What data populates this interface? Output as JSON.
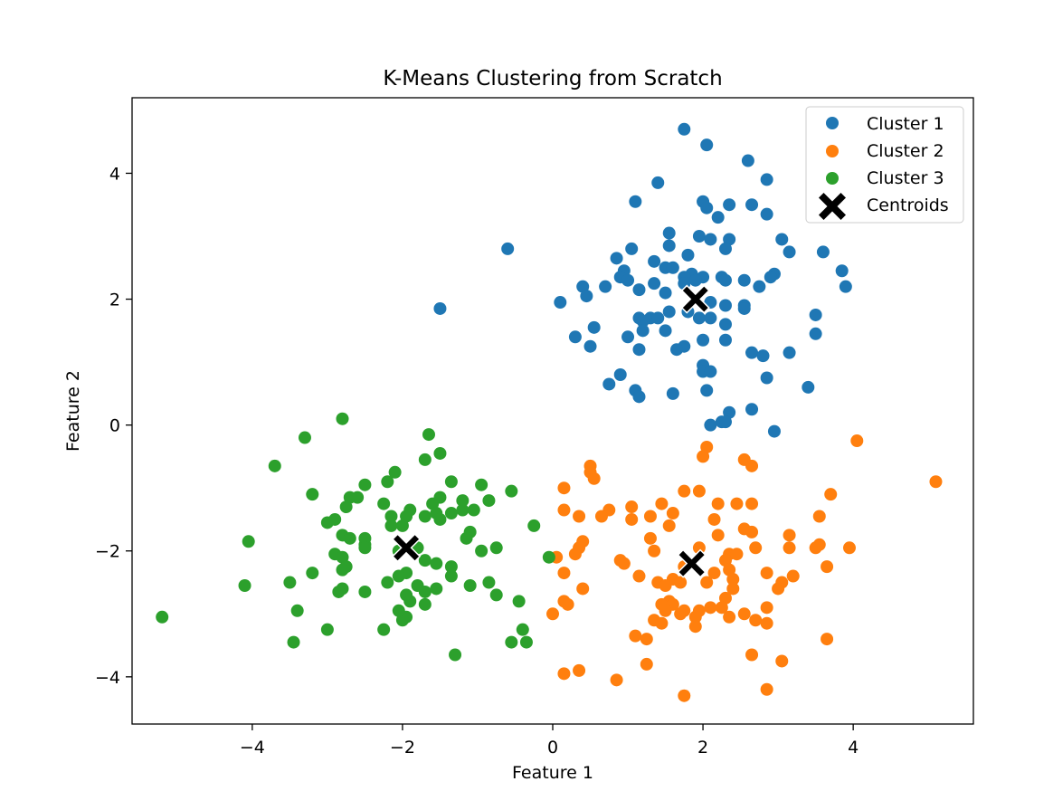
{
  "chart_data": {
    "type": "scatter",
    "title": "K-Means Clustering from Scratch",
    "xlabel": "Feature 1",
    "ylabel": "Feature 2",
    "xlim": [
      -5.6,
      5.6
    ],
    "ylim": [
      -4.75,
      5.2
    ],
    "xticks": [
      -4,
      -2,
      0,
      2,
      4
    ],
    "xtick_labels": [
      "−4",
      "−2",
      "0",
      "2",
      "4"
    ],
    "yticks": [
      -4,
      -2,
      0,
      2,
      4
    ],
    "ytick_labels": [
      "−4",
      "−2",
      "0",
      "2",
      "4"
    ],
    "grid": false,
    "legend_position": "top-right",
    "series": [
      {
        "name": "Cluster 1",
        "color": "#1f77b4",
        "marker": "circle",
        "points": [
          [
            1.75,
            4.7
          ],
          [
            2.05,
            4.45
          ],
          [
            2.6,
            4.2
          ],
          [
            1.4,
            3.85
          ],
          [
            2.85,
            3.9
          ],
          [
            1.1,
            3.55
          ],
          [
            2.0,
            3.55
          ],
          [
            2.05,
            3.45
          ],
          [
            2.35,
            3.5
          ],
          [
            2.65,
            3.5
          ],
          [
            2.85,
            3.35
          ],
          [
            2.2,
            3.3
          ],
          [
            1.55,
            3.05
          ],
          [
            1.95,
            3.0
          ],
          [
            2.1,
            2.95
          ],
          [
            2.35,
            2.95
          ],
          [
            3.05,
            2.95
          ],
          [
            1.55,
            2.85
          ],
          [
            2.3,
            2.8
          ],
          [
            1.05,
            2.8
          ],
          [
            3.15,
            2.75
          ],
          [
            3.6,
            2.75
          ],
          [
            1.8,
            2.7
          ],
          [
            0.85,
            2.65
          ],
          [
            1.35,
            2.6
          ],
          [
            1.5,
            2.5
          ],
          [
            1.6,
            2.5
          ],
          [
            0.95,
            2.45
          ],
          [
            3.85,
            2.45
          ],
          [
            1.85,
            2.4
          ],
          [
            2.0,
            2.35
          ],
          [
            2.95,
            2.4
          ],
          [
            0.9,
            2.35
          ],
          [
            1.75,
            2.35
          ],
          [
            2.25,
            2.35
          ],
          [
            2.9,
            2.35
          ],
          [
            1.0,
            2.3
          ],
          [
            1.9,
            2.3
          ],
          [
            2.3,
            2.3
          ],
          [
            2.55,
            2.3
          ],
          [
            1.35,
            2.25
          ],
          [
            1.75,
            2.25
          ],
          [
            0.4,
            2.2
          ],
          [
            0.7,
            2.2
          ],
          [
            2.75,
            2.2
          ],
          [
            3.9,
            2.2
          ],
          [
            1.15,
            2.15
          ],
          [
            1.5,
            2.1
          ],
          [
            0.45,
            2.05
          ],
          [
            0.1,
            1.95
          ],
          [
            2.1,
            1.95
          ],
          [
            2.3,
            1.9
          ],
          [
            2.55,
            1.9
          ],
          [
            1.55,
            1.8
          ],
          [
            1.8,
            1.8
          ],
          [
            2.55,
            1.85
          ],
          [
            3.5,
            1.75
          ],
          [
            1.15,
            1.7
          ],
          [
            1.3,
            1.7
          ],
          [
            1.4,
            1.7
          ],
          [
            1.95,
            1.7
          ],
          [
            2.1,
            1.7
          ],
          [
            1.2,
            1.65
          ],
          [
            2.3,
            1.6
          ],
          [
            0.55,
            1.55
          ],
          [
            1.2,
            1.5
          ],
          [
            1.5,
            1.5
          ],
          [
            3.5,
            1.45
          ],
          [
            1.0,
            1.4
          ],
          [
            0.3,
            1.4
          ],
          [
            2.0,
            1.35
          ],
          [
            2.3,
            1.35
          ],
          [
            0.5,
            1.25
          ],
          [
            1.75,
            1.25
          ],
          [
            1.65,
            1.2
          ],
          [
            1.15,
            1.2
          ],
          [
            3.15,
            1.15
          ],
          [
            2.65,
            1.15
          ],
          [
            2.8,
            1.1
          ],
          [
            2.0,
            0.95
          ],
          [
            2.0,
            0.85
          ],
          [
            2.1,
            0.85
          ],
          [
            0.9,
            0.8
          ],
          [
            2.85,
            0.75
          ],
          [
            0.75,
            0.65
          ],
          [
            3.4,
            0.6
          ],
          [
            1.1,
            0.55
          ],
          [
            2.05,
            0.55
          ],
          [
            1.6,
            0.5
          ],
          [
            1.15,
            0.45
          ],
          [
            2.65,
            0.25
          ],
          [
            2.35,
            0.2
          ],
          [
            2.25,
            0.05
          ],
          [
            2.1,
            0.0
          ],
          [
            2.3,
            0.05
          ],
          [
            2.95,
            -0.1
          ],
          [
            -0.6,
            2.8
          ],
          [
            -1.5,
            1.85
          ]
        ]
      },
      {
        "name": "Cluster 2",
        "color": "#ff7f0e",
        "marker": "circle",
        "points": [
          [
            4.05,
            -0.25
          ],
          [
            2.05,
            -0.35
          ],
          [
            2.0,
            -0.5
          ],
          [
            2.55,
            -0.55
          ],
          [
            2.65,
            -0.65
          ],
          [
            0.5,
            -0.65
          ],
          [
            0.5,
            -0.75
          ],
          [
            0.55,
            -0.85
          ],
          [
            5.1,
            -0.9
          ],
          [
            0.15,
            -1.0
          ],
          [
            1.75,
            -1.05
          ],
          [
            1.95,
            -1.05
          ],
          [
            3.7,
            -1.1
          ],
          [
            2.2,
            -1.25
          ],
          [
            2.45,
            -1.25
          ],
          [
            2.65,
            -1.25
          ],
          [
            1.45,
            -1.25
          ],
          [
            1.05,
            -1.3
          ],
          [
            1.6,
            -1.4
          ],
          [
            0.75,
            -1.35
          ],
          [
            0.15,
            -1.35
          ],
          [
            1.3,
            -1.45
          ],
          [
            3.55,
            -1.45
          ],
          [
            0.35,
            -1.45
          ],
          [
            0.65,
            -1.45
          ],
          [
            1.05,
            -1.5
          ],
          [
            2.15,
            -1.5
          ],
          [
            1.55,
            -1.6
          ],
          [
            2.55,
            -1.65
          ],
          [
            2.65,
            -1.7
          ],
          [
            2.2,
            -1.75
          ],
          [
            3.15,
            -1.75
          ],
          [
            1.3,
            -1.8
          ],
          [
            0.4,
            -1.85
          ],
          [
            0.35,
            -1.95
          ],
          [
            1.95,
            -1.95
          ],
          [
            3.5,
            -1.95
          ],
          [
            3.55,
            -1.9
          ],
          [
            3.95,
            -1.95
          ],
          [
            3.15,
            -1.95
          ],
          [
            2.7,
            -1.95
          ],
          [
            1.35,
            -2.0
          ],
          [
            0.3,
            -2.05
          ],
          [
            2.35,
            -2.05
          ],
          [
            2.45,
            -2.05
          ],
          [
            0.05,
            -2.1
          ],
          [
            2.3,
            -2.15
          ],
          [
            0.9,
            -2.15
          ],
          [
            0.95,
            -2.2
          ],
          [
            3.65,
            -2.25
          ],
          [
            1.75,
            -2.25
          ],
          [
            2.35,
            -2.3
          ],
          [
            2.15,
            -2.35
          ],
          [
            0.15,
            -2.35
          ],
          [
            2.85,
            -2.35
          ],
          [
            1.15,
            -2.4
          ],
          [
            3.2,
            -2.4
          ],
          [
            2.4,
            -2.45
          ],
          [
            1.6,
            -2.45
          ],
          [
            1.4,
            -2.5
          ],
          [
            1.7,
            -2.5
          ],
          [
            3.05,
            -2.5
          ],
          [
            2.05,
            -2.5
          ],
          [
            3.0,
            -2.6
          ],
          [
            1.5,
            -2.55
          ],
          [
            0.4,
            -2.6
          ],
          [
            2.4,
            -2.6
          ],
          [
            2.3,
            -2.75
          ],
          [
            1.55,
            -2.8
          ],
          [
            1.45,
            -2.85
          ],
          [
            0.15,
            -2.8
          ],
          [
            0.2,
            -2.85
          ],
          [
            1.6,
            -2.85
          ],
          [
            2.1,
            -2.9
          ],
          [
            2.85,
            -2.9
          ],
          [
            1.75,
            -2.95
          ],
          [
            1.5,
            -2.95
          ],
          [
            1.95,
            -2.95
          ],
          [
            2.25,
            -2.9
          ],
          [
            1.7,
            -3.0
          ],
          [
            2.55,
            -3.0
          ],
          [
            -0.0,
            -3.0
          ],
          [
            1.9,
            -3.05
          ],
          [
            2.35,
            -3.05
          ],
          [
            1.35,
            -3.1
          ],
          [
            2.7,
            -3.1
          ],
          [
            1.45,
            -3.15
          ],
          [
            2.85,
            -3.15
          ],
          [
            1.9,
            -3.2
          ],
          [
            1.1,
            -3.35
          ],
          [
            1.25,
            -3.4
          ],
          [
            3.65,
            -3.4
          ],
          [
            2.65,
            -3.65
          ],
          [
            3.05,
            -3.75
          ],
          [
            1.25,
            -3.8
          ],
          [
            0.35,
            -3.9
          ],
          [
            0.15,
            -3.95
          ],
          [
            0.85,
            -4.05
          ],
          [
            2.85,
            -4.2
          ],
          [
            1.75,
            -4.3
          ]
        ]
      },
      {
        "name": "Cluster 3",
        "color": "#2ca02c",
        "marker": "circle",
        "points": [
          [
            -2.8,
            0.1
          ],
          [
            -1.65,
            -0.15
          ],
          [
            -3.3,
            -0.2
          ],
          [
            -1.5,
            -0.45
          ],
          [
            -1.7,
            -0.55
          ],
          [
            -3.7,
            -0.65
          ],
          [
            -2.1,
            -0.75
          ],
          [
            -2.2,
            -0.9
          ],
          [
            -2.5,
            -0.95
          ],
          [
            -1.35,
            -0.9
          ],
          [
            -0.95,
            -0.95
          ],
          [
            -3.2,
            -1.1
          ],
          [
            -2.7,
            -1.15
          ],
          [
            -2.6,
            -1.15
          ],
          [
            -1.5,
            -1.15
          ],
          [
            -0.55,
            -1.05
          ],
          [
            -1.6,
            -1.25
          ],
          [
            -1.2,
            -1.2
          ],
          [
            -0.85,
            -1.2
          ],
          [
            -2.25,
            -1.25
          ],
          [
            -2.75,
            -1.3
          ],
          [
            -1.9,
            -1.35
          ],
          [
            -1.35,
            -1.4
          ],
          [
            -1.2,
            -1.35
          ],
          [
            -1.05,
            -1.35
          ],
          [
            -1.55,
            -1.4
          ],
          [
            -2.15,
            -1.45
          ],
          [
            -1.95,
            -1.45
          ],
          [
            -1.7,
            -1.45
          ],
          [
            -1.5,
            -1.5
          ],
          [
            -2.9,
            -1.5
          ],
          [
            -3.0,
            -1.55
          ],
          [
            -2.0,
            -1.6
          ],
          [
            -2.15,
            -1.6
          ],
          [
            -0.25,
            -1.6
          ],
          [
            -1.1,
            -1.7
          ],
          [
            -2.8,
            -1.75
          ],
          [
            -2.5,
            -1.8
          ],
          [
            -1.15,
            -1.8
          ],
          [
            -2.7,
            -1.8
          ],
          [
            -4.05,
            -1.85
          ],
          [
            -2.5,
            -1.9
          ],
          [
            -2.5,
            -1.95
          ],
          [
            -2.05,
            -2.0
          ],
          [
            -1.8,
            -1.95
          ],
          [
            -0.95,
            -2.0
          ],
          [
            -0.75,
            -1.95
          ],
          [
            -2.9,
            -2.05
          ],
          [
            -2.8,
            -2.1
          ],
          [
            -0.05,
            -2.1
          ],
          [
            -1.7,
            -2.15
          ],
          [
            -1.55,
            -2.2
          ],
          [
            -2.75,
            -2.25
          ],
          [
            -1.35,
            -2.25
          ],
          [
            -2.8,
            -2.3
          ],
          [
            -1.95,
            -2.35
          ],
          [
            -3.2,
            -2.35
          ],
          [
            -1.35,
            -2.4
          ],
          [
            -2.05,
            -2.4
          ],
          [
            -2.2,
            -2.5
          ],
          [
            -1.1,
            -2.55
          ],
          [
            -0.85,
            -2.5
          ],
          [
            -4.1,
            -2.55
          ],
          [
            -3.5,
            -2.5
          ],
          [
            -1.8,
            -2.55
          ],
          [
            -1.55,
            -2.6
          ],
          [
            -2.8,
            -2.6
          ],
          [
            -2.85,
            -2.65
          ],
          [
            -1.7,
            -2.65
          ],
          [
            -1.95,
            -2.7
          ],
          [
            -2.5,
            -2.65
          ],
          [
            -0.75,
            -2.7
          ],
          [
            -1.9,
            -2.8
          ],
          [
            -1.7,
            -2.85
          ],
          [
            -0.45,
            -2.8
          ],
          [
            -3.4,
            -2.95
          ],
          [
            -1.95,
            -3.05
          ],
          [
            -5.2,
            -3.05
          ],
          [
            -2.0,
            -3.1
          ],
          [
            -3.0,
            -3.25
          ],
          [
            -2.25,
            -3.25
          ],
          [
            -0.4,
            -3.25
          ],
          [
            -3.45,
            -3.45
          ],
          [
            -0.55,
            -3.45
          ],
          [
            -0.35,
            -3.45
          ],
          [
            -1.3,
            -3.65
          ],
          [
            -2.05,
            -2.95
          ]
        ]
      }
    ],
    "centroids": {
      "name": "Centroids",
      "color": "#000000",
      "marker": "X",
      "points": [
        [
          1.9,
          2.0
        ],
        [
          1.85,
          -2.2
        ],
        [
          -1.95,
          -1.95
        ]
      ]
    }
  }
}
